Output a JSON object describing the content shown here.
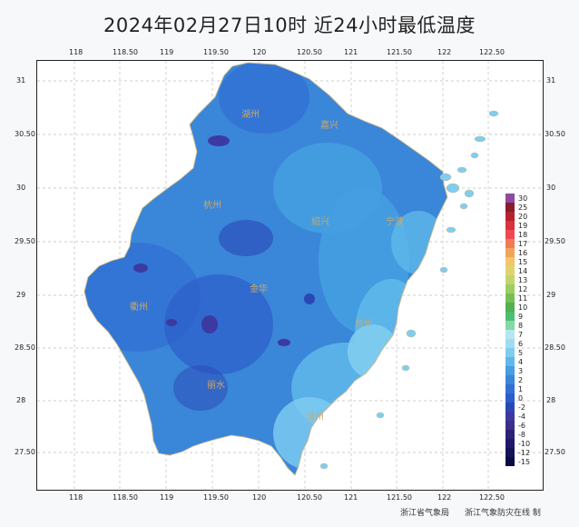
{
  "title": "2024年02月27日10时  近24小时最低温度",
  "axes": {
    "lon_ticks": [
      "118",
      "118.50",
      "119",
      "119.50",
      "120",
      "120.50",
      "121",
      "121.50",
      "122",
      "122.50"
    ],
    "lat_ticks": [
      "31",
      "30.50",
      "30",
      "29.50",
      "29",
      "28.50",
      "28",
      "27.50"
    ]
  },
  "cities": [
    {
      "name": "湖州"
    },
    {
      "name": "嘉兴"
    },
    {
      "name": "杭州"
    },
    {
      "name": "绍兴"
    },
    {
      "name": "宁波"
    },
    {
      "name": "金华"
    },
    {
      "name": "衢州"
    },
    {
      "name": "台州"
    },
    {
      "name": "丽水"
    },
    {
      "name": "温州"
    }
  ],
  "legend": {
    "items": [
      {
        "label": "30",
        "color": "#8f4aa0"
      },
      {
        "label": "25",
        "color": "#8a1c2c"
      },
      {
        "label": "20",
        "color": "#b5232e"
      },
      {
        "label": "19",
        "color": "#d8323b"
      },
      {
        "label": "18",
        "color": "#ee4a55"
      },
      {
        "label": "17",
        "color": "#f07a54"
      },
      {
        "label": "16",
        "color": "#f2a45c"
      },
      {
        "label": "15",
        "color": "#f4c56a"
      },
      {
        "label": "14",
        "color": "#e2d271"
      },
      {
        "label": "13",
        "color": "#c4d46c"
      },
      {
        "label": "12",
        "color": "#9ccf62"
      },
      {
        "label": "11",
        "color": "#76bf58"
      },
      {
        "label": "10",
        "color": "#57ad52"
      },
      {
        "label": "9",
        "color": "#4bbf70"
      },
      {
        "label": "8",
        "color": "#84d8a4"
      },
      {
        "label": "7",
        "color": "#b6e7ef"
      },
      {
        "label": "6",
        "color": "#9fdcf2"
      },
      {
        "label": "5",
        "color": "#80cdf0"
      },
      {
        "label": "4",
        "color": "#5fb8ea"
      },
      {
        "label": "3",
        "color": "#459fe0"
      },
      {
        "label": "2",
        "color": "#3a86d9"
      },
      {
        "label": "1",
        "color": "#3271d2"
      },
      {
        "label": "0",
        "color": "#2c5ec9"
      },
      {
        "label": "-2",
        "color": "#2a48b5"
      },
      {
        "label": "-4",
        "color": "#3c3aa0"
      },
      {
        "label": "-6",
        "color": "#3b2f8a"
      },
      {
        "label": "-8",
        "color": "#2a2377"
      },
      {
        "label": "-10",
        "color": "#1e1a68"
      },
      {
        "label": "-12",
        "color": "#15125a"
      },
      {
        "label": "-15",
        "color": "#0c0a45"
      }
    ]
  },
  "credits": {
    "left": "浙江省气象局",
    "right": "浙江气象防灾在线  制"
  },
  "colors": {
    "land_base": "#3a86d9",
    "land_warm": "#459fe0",
    "land_warmer": "#80cdf0",
    "land_cold": "#2a48b5",
    "land_colder": "#3c3aa0",
    "boundary": "#c9b98a",
    "grid": "#bfbfbf"
  }
}
